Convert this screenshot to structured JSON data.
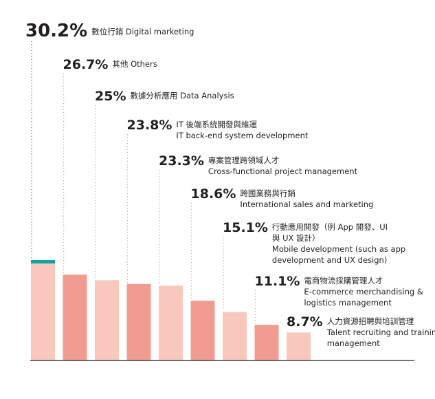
{
  "chart_data": {
    "type": "bar",
    "categories": [
      {
        "pct": "30.2%",
        "lines": [
          "數位行銷 Digital marketing"
        ]
      },
      {
        "pct": "26.7%",
        "lines": [
          "其他 Others"
        ]
      },
      {
        "pct": "25%",
        "lines": [
          "數據分析應用 Data Analysis"
        ]
      },
      {
        "pct": "23.8%",
        "lines": [
          "IT 後端系統開發與維運",
          "IT back-end system development"
        ]
      },
      {
        "pct": "23.3%",
        "lines": [
          "專案管理跨領域人才",
          "Cross-functional project management"
        ]
      },
      {
        "pct": "18.6%",
        "lines": [
          "跨國業務與行銷",
          "International sales and marketing"
        ]
      },
      {
        "pct": "15.1%",
        "lines": [
          "行動應用開發（例 App 開發、UI",
          "與 UX 設計）",
          "Mobile development (such as app",
          "development and UX design)"
        ]
      },
      {
        "pct": "11.1%",
        "lines": [
          "電商物流採購管理人才",
          "E-commerce merchandising &",
          "logistics management"
        ]
      },
      {
        "pct": "8.7%",
        "lines": [
          "人力資源招聘與培訓管理",
          "Talent recruiting and training",
          "management"
        ]
      }
    ],
    "values": [
      30.2,
      26.7,
      25,
      23.8,
      23.3,
      18.6,
      15.1,
      11.1,
      8.7
    ],
    "colors": {
      "light": "#f8c8bd",
      "dark": "#f19c91",
      "highlight": "#0ea59c",
      "pct_first": "#0ea59c",
      "text": "#231f20",
      "axis": "#231f20"
    },
    "bar_color_pattern": [
      "light",
      "dark",
      "light",
      "dark",
      "light",
      "dark",
      "light",
      "dark",
      "light"
    ]
  }
}
